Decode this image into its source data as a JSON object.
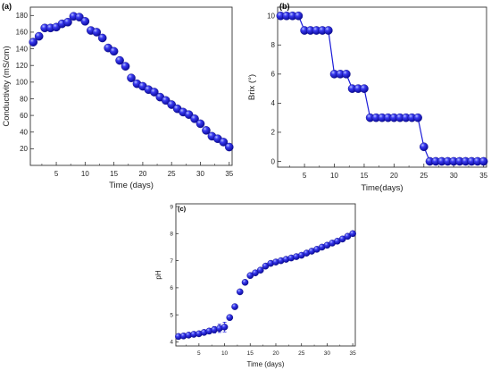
{
  "accent_color": "#1c1cd8",
  "marker_style": "sphere",
  "chart_data": [
    {
      "type": "line",
      "panel_label": "(a)",
      "xlabel": "Time (days)",
      "ylabel": "Conductivity (mS/cm)",
      "xlim": [
        0.5,
        35.5
      ],
      "ylim": [
        0,
        190
      ],
      "xticks": [
        5,
        10,
        15,
        20,
        25,
        30,
        35
      ],
      "yticks": [
        20,
        40,
        60,
        80,
        100,
        120,
        140,
        160,
        180
      ],
      "grid": false,
      "connect_points": false,
      "series": [
        {
          "x": [
            1,
            2,
            3,
            4,
            5,
            6,
            7,
            8,
            9,
            10,
            11,
            12,
            13,
            14,
            15,
            16,
            17,
            18,
            19,
            20,
            21,
            22,
            23,
            24,
            25,
            26,
            27,
            28,
            29,
            30,
            31,
            32,
            33,
            34,
            35
          ],
          "y": [
            148,
            155,
            165,
            165,
            166,
            170,
            172,
            179,
            178,
            173,
            162,
            160,
            153,
            141,
            137,
            126,
            119,
            105,
            98,
            95,
            91,
            88,
            82,
            78,
            73,
            68,
            64,
            61,
            56,
            50,
            42,
            35,
            32,
            28,
            22
          ]
        }
      ]
    },
    {
      "type": "line",
      "panel_label": "(b)",
      "xlabel": "Time(days)",
      "ylabel": "Brix (°)",
      "xlim": [
        0.5,
        35.5
      ],
      "ylim": [
        -0.4,
        10.6
      ],
      "xticks": [
        5,
        10,
        15,
        20,
        25,
        30,
        35
      ],
      "yticks": [
        0,
        2,
        4,
        6,
        8,
        10
      ],
      "grid": false,
      "connect_points": true,
      "series": [
        {
          "x": [
            1,
            2,
            3,
            4,
            5,
            6,
            7,
            8,
            9,
            10,
            11,
            12,
            13,
            14,
            15,
            16,
            17,
            18,
            19,
            20,
            21,
            22,
            23,
            24,
            25,
            26,
            27,
            28,
            29,
            30,
            31,
            32,
            33,
            34,
            35
          ],
          "y": [
            10,
            10,
            10,
            10,
            9,
            9,
            9,
            9,
            9,
            6,
            6,
            6,
            5,
            5,
            5,
            3,
            3,
            3,
            3,
            3,
            3,
            3,
            3,
            3,
            1,
            0,
            0,
            0,
            0,
            0,
            0,
            0,
            0,
            0,
            0
          ]
        }
      ]
    },
    {
      "type": "line",
      "panel_label": "(c)",
      "xlabel": "Time (days)",
      "ylabel": "pH",
      "xlim": [
        0.5,
        35.5
      ],
      "ylim": [
        3.85,
        9.1
      ],
      "xticks": [
        5,
        10,
        15,
        20,
        25,
        30,
        35
      ],
      "yticks": [
        4,
        5,
        6,
        7,
        8,
        9
      ],
      "grid": false,
      "connect_points": false,
      "error_bars": true,
      "series": [
        {
          "x": [
            1,
            2,
            3,
            4,
            5,
            6,
            7,
            8,
            9,
            10,
            11,
            12,
            13,
            14,
            15,
            16,
            17,
            18,
            19,
            20,
            21,
            22,
            23,
            24,
            25,
            26,
            27,
            28,
            29,
            30,
            31,
            32,
            33,
            34,
            35
          ],
          "y": [
            4.2,
            4.22,
            4.25,
            4.28,
            4.3,
            4.35,
            4.4,
            4.45,
            4.5,
            4.55,
            4.9,
            5.3,
            5.85,
            6.2,
            6.45,
            6.55,
            6.65,
            6.8,
            6.9,
            6.95,
            7.0,
            7.05,
            7.1,
            7.15,
            7.2,
            7.28,
            7.35,
            7.42,
            7.5,
            7.57,
            7.65,
            7.72,
            7.8,
            7.9,
            8.0
          ],
          "err": [
            0.04,
            0.04,
            0.04,
            0.04,
            0.05,
            0.06,
            0.1,
            0.12,
            0.15,
            0.18,
            0.1,
            0.08,
            0.08,
            0.08,
            0.07,
            0.07,
            0.06,
            0.06,
            0.05,
            0.05,
            0.05,
            0.05,
            0.05,
            0.05,
            0.05,
            0.05,
            0.05,
            0.05,
            0.05,
            0.05,
            0.05,
            0.05,
            0.05,
            0.05,
            0.05
          ]
        }
      ]
    }
  ]
}
